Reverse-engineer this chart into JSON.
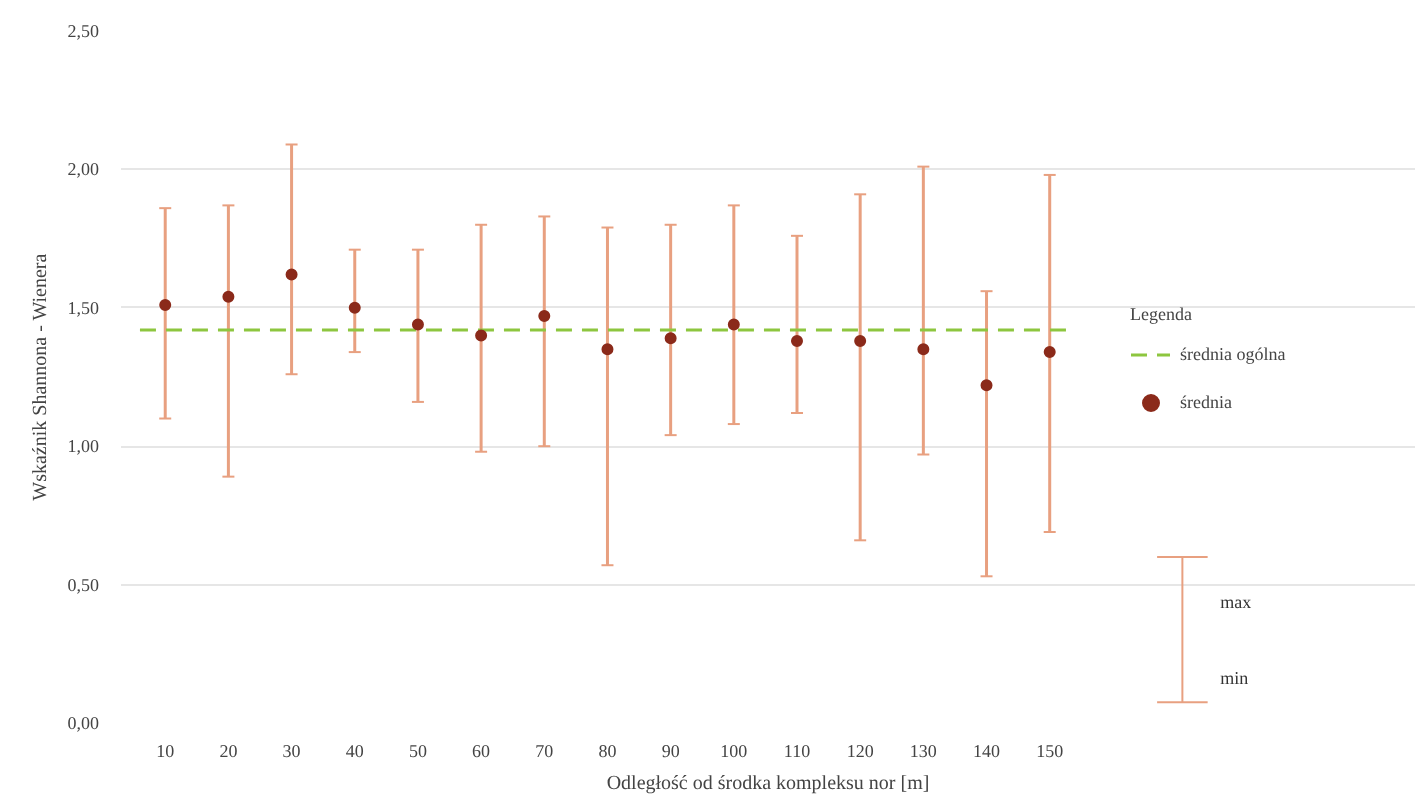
{
  "chart_data": {
    "type": "scatter",
    "xlabel": "Odległość od środka kompleksu nor [m]",
    "ylabel": "Wskaźnik Shannona - Wienera",
    "legend_title": "Legenda",
    "categories": [
      "10",
      "20",
      "30",
      "40",
      "50",
      "60",
      "70",
      "80",
      "90",
      "100",
      "110",
      "120",
      "130",
      "140",
      "150"
    ],
    "series": [
      {
        "name": "średnia",
        "color": "#8b2a1a",
        "values": [
          1.51,
          1.54,
          1.62,
          1.5,
          1.44,
          1.4,
          1.47,
          1.35,
          1.39,
          1.44,
          1.38,
          1.38,
          1.35,
          1.22,
          1.34
        ],
        "errors": [
          [
            1.1,
            1.86
          ],
          [
            0.89,
            1.87
          ],
          [
            1.26,
            2.09
          ],
          [
            1.34,
            1.71
          ],
          [
            1.16,
            1.71
          ],
          [
            0.98,
            1.8
          ],
          [
            1.0,
            1.83
          ],
          [
            0.57,
            1.79
          ],
          [
            1.04,
            1.8
          ],
          [
            1.08,
            1.87
          ],
          [
            1.12,
            1.76
          ],
          [
            0.66,
            1.91
          ],
          [
            0.97,
            2.01
          ],
          [
            0.53,
            1.56
          ],
          [
            0.69,
            1.98
          ]
        ]
      }
    ],
    "ref_lines": [
      {
        "axis": "y",
        "value": 1.42,
        "label": "średnia ogólna",
        "color": "#8dc63f",
        "line_style": "dashed"
      }
    ],
    "annotations": [
      "max",
      "min"
    ],
    "ylim": [
      0,
      2.5
    ],
    "yticks": [
      {
        "value": 0,
        "label": "0,00"
      },
      {
        "value": 0.5,
        "label": "0,50"
      },
      {
        "value": 1,
        "label": "1,00"
      },
      {
        "value": 1.5,
        "label": "1,50"
      },
      {
        "value": 2,
        "label": "2,00"
      },
      {
        "value": 2.5,
        "label": "2,50"
      }
    ],
    "grid": "y",
    "legend": "right",
    "marker": "circle"
  }
}
